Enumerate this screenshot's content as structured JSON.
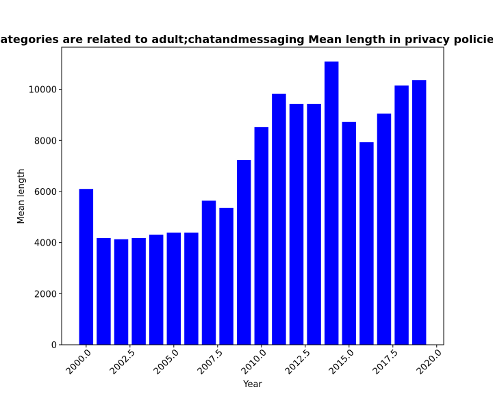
{
  "chart_data": {
    "type": "bar",
    "title": "Categories are related to adult;chatandmessaging Mean length in privacy policies",
    "xlabel": "Year",
    "ylabel": "Mean length",
    "x": [
      2000,
      2001,
      2002,
      2003,
      2004,
      2005,
      2006,
      2007,
      2008,
      2009,
      2010,
      2011,
      2012,
      2013,
      2014,
      2015,
      2016,
      2017,
      2018,
      2019
    ],
    "values": [
      6100,
      4180,
      4130,
      4180,
      4310,
      4390,
      4390,
      5640,
      5360,
      7230,
      8520,
      9830,
      9430,
      9430,
      11090,
      8730,
      7930,
      9050,
      10150,
      10360
    ],
    "xlim": [
      1998.6,
      2020.4
    ],
    "ylim": [
      0,
      11650
    ],
    "x_ticks": [
      2000.0,
      2002.5,
      2005.0,
      2007.5,
      2010.0,
      2012.5,
      2015.0,
      2017.5,
      2020.0
    ],
    "x_tick_labels": [
      "2000.0",
      "2002.5",
      "2005.0",
      "2007.5",
      "2010.0",
      "2012.5",
      "2015.0",
      "2017.5",
      "2020.0"
    ],
    "y_ticks": [
      0,
      2000,
      4000,
      6000,
      8000,
      10000
    ],
    "y_tick_labels": [
      "0",
      "2000",
      "4000",
      "6000",
      "8000",
      "10000"
    ],
    "bar_color": "#0000ff",
    "grid": false,
    "legend": false
  }
}
